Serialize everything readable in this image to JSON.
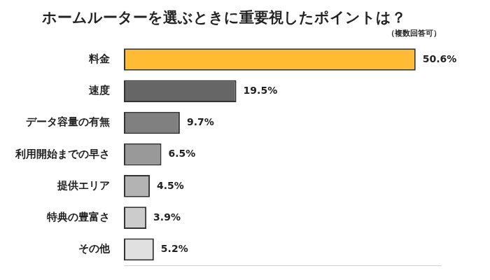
{
  "chart_data": {
    "type": "bar",
    "orientation": "horizontal",
    "title": "ホームルーターを選ぶときに重要視したポイントは？",
    "subtitle": "（複数回答可）",
    "categories": [
      "料金",
      "速度",
      "データ容量の有無",
      "利用開始までの早さ",
      "提供エリア",
      "特典の豊富さ",
      "その他"
    ],
    "values": [
      50.6,
      19.5,
      9.7,
      6.5,
      4.5,
      3.9,
      5.2
    ],
    "value_labels": [
      "50.6%",
      "19.5%",
      "9.7%",
      "6.5%",
      "4.5%",
      "3.9%",
      "5.2%"
    ],
    "colors": [
      "#ffbb33",
      "#666666",
      "#808080",
      "#999999",
      "#b3b3b3",
      "#cccccc",
      "#e0e0e0"
    ],
    "xlim": [
      0,
      55
    ],
    "grid": false,
    "data_labels": true,
    "tick_labels": "y"
  }
}
